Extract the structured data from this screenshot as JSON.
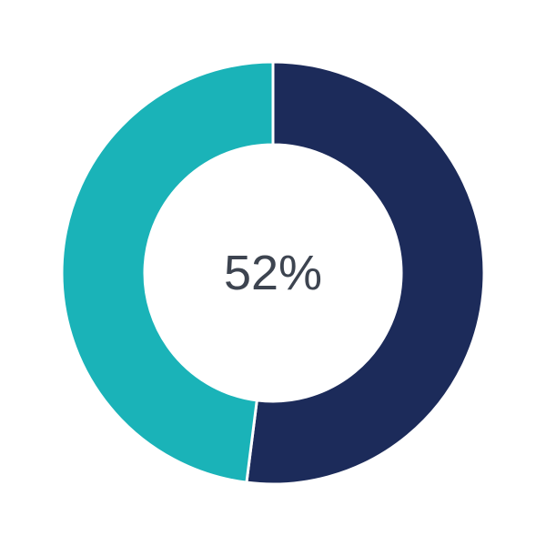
{
  "chart_data": {
    "type": "pie",
    "donut": true,
    "center_label": "52%",
    "slices": [
      {
        "value": 52,
        "color": "#1c2b5a"
      },
      {
        "value": 48,
        "color": "#1ab3b8"
      }
    ]
  }
}
